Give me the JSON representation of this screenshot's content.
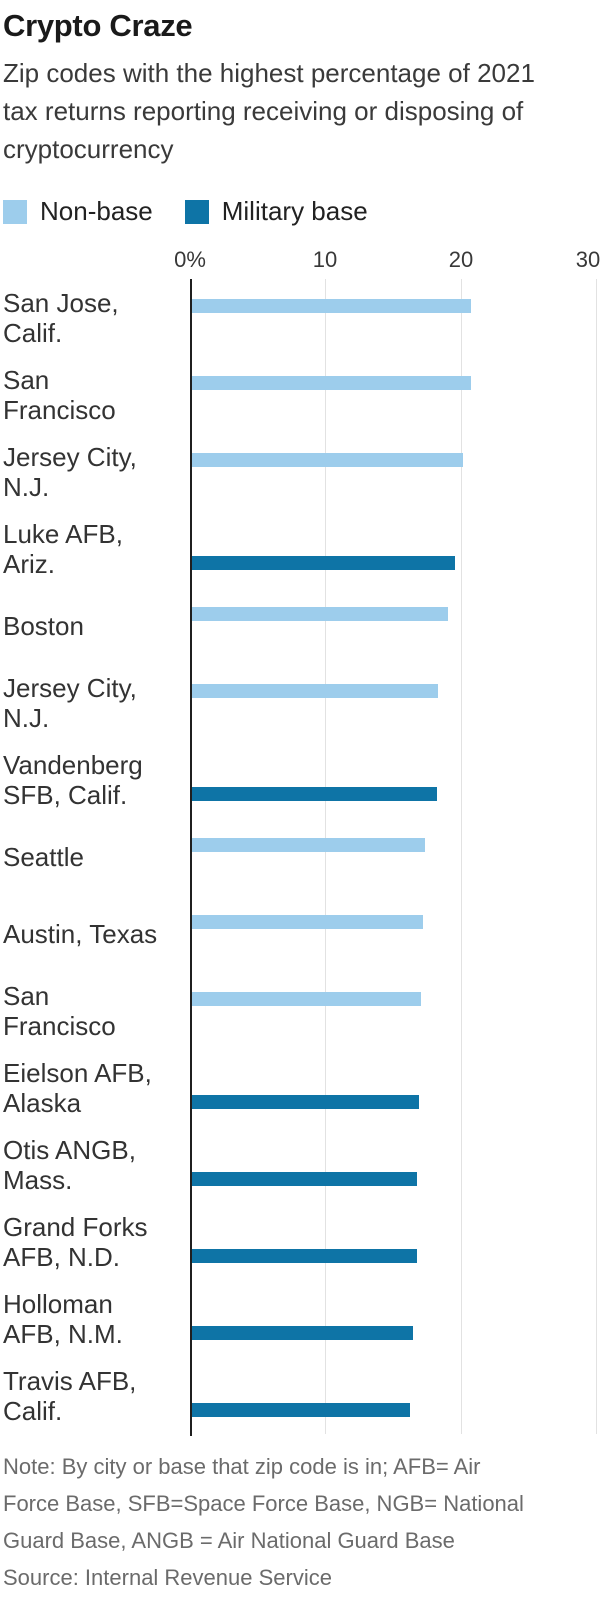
{
  "header": {
    "title": "Crypto Craze",
    "subtitle_lines": [
      "Zip codes with the highest percentage of 2021",
      "tax returns reporting receiving or disposing of",
      "cryptocurrency"
    ]
  },
  "legend": [
    {
      "label": "Non-base",
      "color": "#9DCDEC"
    },
    {
      "label": "Military base",
      "color": "#0E74A6"
    }
  ],
  "chart_data": {
    "type": "bar",
    "orientation": "horizontal",
    "unit": "percent of tax returns",
    "xlim": [
      0,
      30
    ],
    "ticks": [
      "0%",
      "10",
      "20",
      "30"
    ],
    "grid": true,
    "legend_position": "top",
    "colors": {
      "non-base": "#9DCDEC",
      "military-base": "#0E74A6"
    },
    "rows": [
      {
        "label_lines": [
          "San Jose,",
          "Calif."
        ],
        "category": "non-base",
        "value": 20.6
      },
      {
        "label_lines": [
          "San",
          "Francisco"
        ],
        "category": "non-base",
        "value": 20.6
      },
      {
        "label_lines": [
          "Jersey City,",
          "N.J."
        ],
        "category": "non-base",
        "value": 20.0
      },
      {
        "label_lines": [
          "Luke AFB,",
          "Ariz."
        ],
        "category": "military-base",
        "value": 19.4
      },
      {
        "label_lines": [
          "Boston"
        ],
        "category": "non-base",
        "value": 18.9
      },
      {
        "label_lines": [
          "Jersey City,",
          "N.J."
        ],
        "category": "non-base",
        "value": 18.2
      },
      {
        "label_lines": [
          "Vandenberg",
          "SFB, Calif."
        ],
        "category": "military-base",
        "value": 18.1
      },
      {
        "label_lines": [
          "Seattle"
        ],
        "category": "non-base",
        "value": 17.2
      },
      {
        "label_lines": [
          "Austin, Texas"
        ],
        "category": "non-base",
        "value": 17.1
      },
      {
        "label_lines": [
          "San",
          "Francisco"
        ],
        "category": "non-base",
        "value": 16.9
      },
      {
        "label_lines": [
          "Eielson AFB,",
          "Alaska"
        ],
        "category": "military-base",
        "value": 16.8
      },
      {
        "label_lines": [
          "Otis ANGB,",
          "Mass."
        ],
        "category": "military-base",
        "value": 16.6
      },
      {
        "label_lines": [
          "Grand Forks",
          "AFB, N.D."
        ],
        "category": "military-base",
        "value": 16.6
      },
      {
        "label_lines": [
          "Holloman",
          "AFB, N.M."
        ],
        "category": "military-base",
        "value": 16.3
      },
      {
        "label_lines": [
          "Travis AFB,",
          "Calif."
        ],
        "category": "military-base",
        "value": 16.1
      }
    ]
  },
  "footer": {
    "note_lines": [
      "Note: By city or base that zip code is in; AFB= Air",
      "Force Base, SFB=Space Force Base, NGB= National",
      "Guard Base, ANGB = Air National Guard Base"
    ],
    "source": "Source: Internal Revenue Service"
  }
}
